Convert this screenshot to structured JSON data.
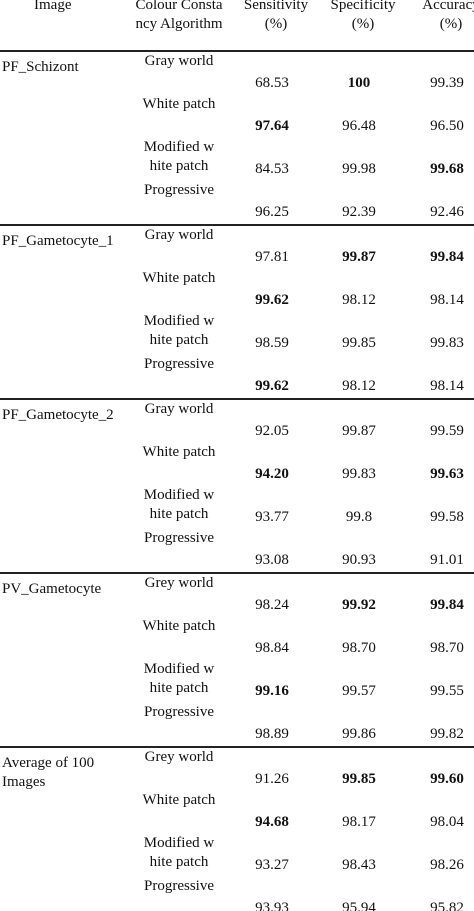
{
  "table": {
    "header": [
      "Image",
      "Colour Constancy Algorithm",
      "Sensitivity (%)",
      "Specificity (%)",
      "Accuracy (%)"
    ],
    "groups": [
      {
        "image": "PF_Schizont",
        "rows": [
          {
            "algorithm": "Gray world",
            "cells": [
              "68.53",
              "100",
              "99.39"
            ],
            "bold": [
              1
            ]
          },
          {
            "algorithm": "White patch",
            "cells": [
              "97.64",
              "96.48",
              "96.50"
            ],
            "bold": [
              0
            ]
          },
          {
            "algorithm": "Modified white patch",
            "cells": [
              "84.53",
              "99.98",
              "99.68"
            ],
            "bold": [
              2
            ]
          },
          {
            "algorithm": "Progressive",
            "cells": [
              "96.25",
              "92.39",
              "92.46"
            ],
            "bold": []
          }
        ]
      },
      {
        "image": "PF_Gametocyte_1",
        "rows": [
          {
            "algorithm": "Gray world",
            "cells": [
              "97.81",
              "99.87",
              "99.84"
            ],
            "bold": [
              1,
              2
            ]
          },
          {
            "algorithm": "White patch",
            "cells": [
              "99.62",
              "98.12",
              "98.14"
            ],
            "bold": [
              0
            ]
          },
          {
            "algorithm": "Modified white patch",
            "cells": [
              "98.59",
              "99.85",
              "99.83"
            ],
            "bold": []
          },
          {
            "algorithm": "Progressive",
            "cells": [
              "99.62",
              "98.12",
              "98.14"
            ],
            "bold": [
              0
            ]
          }
        ]
      },
      {
        "image": "PF_Gametocyte_2",
        "rows": [
          {
            "algorithm": "Gray world",
            "cells": [
              "92.05",
              "99.87",
              "99.59"
            ],
            "bold": []
          },
          {
            "algorithm": "White patch",
            "cells": [
              "94.20",
              "99.83",
              "99.63"
            ],
            "bold": [
              0,
              2
            ]
          },
          {
            "algorithm": "Modified white patch",
            "cells": [
              "93.77",
              "99.8",
              "99.58"
            ],
            "bold": []
          },
          {
            "algorithm": "Progressive",
            "cells": [
              "93.08",
              "90.93",
              "91.01"
            ],
            "bold": []
          }
        ]
      },
      {
        "image": "PV_Gametocyte",
        "rows": [
          {
            "algorithm": "Grey world",
            "cells": [
              "98.24",
              "99.92",
              "99.84"
            ],
            "bold": [
              1,
              2
            ]
          },
          {
            "algorithm": "White patch",
            "cells": [
              "98.84",
              "98.70",
              "98.70"
            ],
            "bold": []
          },
          {
            "algorithm": "Modified white patch",
            "cells": [
              "99.16",
              "99.57",
              "99.55"
            ],
            "bold": [
              0
            ]
          },
          {
            "algorithm": "Progressive",
            "cells": [
              "98.89",
              "99.86",
              "99.82"
            ],
            "bold": []
          }
        ]
      },
      {
        "image": "Average of 100 Images",
        "rows": [
          {
            "algorithm": "Grey world",
            "cells": [
              "91.26",
              "99.85",
              "99.60"
            ],
            "bold": [
              1,
              2
            ]
          },
          {
            "algorithm": "White patch",
            "cells": [
              "94.68",
              "98.17",
              "98.04"
            ],
            "bold": [
              0
            ]
          },
          {
            "algorithm": "Modified white patch",
            "cells": [
              "93.27",
              "98.43",
              "98.26"
            ],
            "bold": []
          },
          {
            "algorithm": "Progressive",
            "cells": [
              "93.93",
              "95.94",
              "95.82"
            ],
            "bold": []
          }
        ]
      }
    ]
  }
}
